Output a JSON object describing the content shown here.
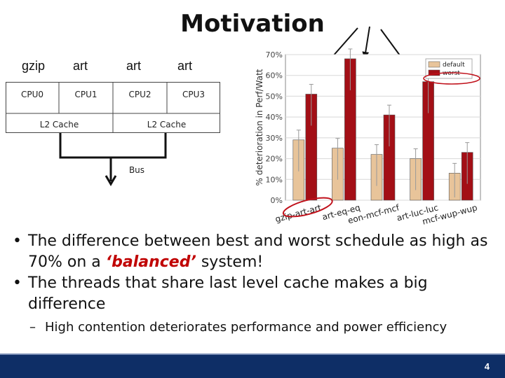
{
  "slide": {
    "title": "Motivation",
    "page_number": "4"
  },
  "processes": [
    "gzip",
    "art",
    "art",
    "art"
  ],
  "architecture": {
    "cpus": [
      "CPU0",
      "CPU1",
      "CPU2",
      "CPU3"
    ],
    "caches": [
      "L2 Cache",
      "L2 Cache"
    ],
    "bus_label": "Bus"
  },
  "bullets": [
    {
      "parts": [
        {
          "text": "The difference between best and worst schedule as high as 70% on a ",
          "style": "normal"
        },
        {
          "text": "‘balanced’",
          "style": "highlight"
        },
        {
          "text": " system!",
          "style": "normal"
        }
      ]
    },
    {
      "parts": [
        {
          "text": "The threads that share last level cache makes a big difference",
          "style": "normal"
        }
      ]
    }
  ],
  "sub_bullets": [
    "High contention deteriorates performance and power efficiency"
  ],
  "colors": {
    "default_bar": "#e8c49a",
    "worst_bar": "#a30f16",
    "footer": "#0e2e66",
    "annotation": "#c0101a",
    "highlight_text": "#c00000"
  },
  "chart_data": {
    "type": "bar",
    "title": "",
    "xlabel": "",
    "ylabel": "% deterioration in Perf/Watt",
    "ylim": [
      0,
      70
    ],
    "yticks": [
      "0%",
      "10%",
      "20%",
      "30%",
      "40%",
      "50%",
      "60%",
      "70%"
    ],
    "categories": [
      "gzip-art-art",
      "art-eq-eq",
      "eon-mcf-mcf",
      "art-luc-luc",
      "mcf-wup-wup"
    ],
    "series": [
      {
        "name": "default",
        "values": [
          29,
          25,
          22,
          20,
          13
        ]
      },
      {
        "name": "worst",
        "values": [
          51,
          68,
          41,
          57,
          23
        ]
      }
    ],
    "grid": true,
    "legend_position": "top-right"
  }
}
